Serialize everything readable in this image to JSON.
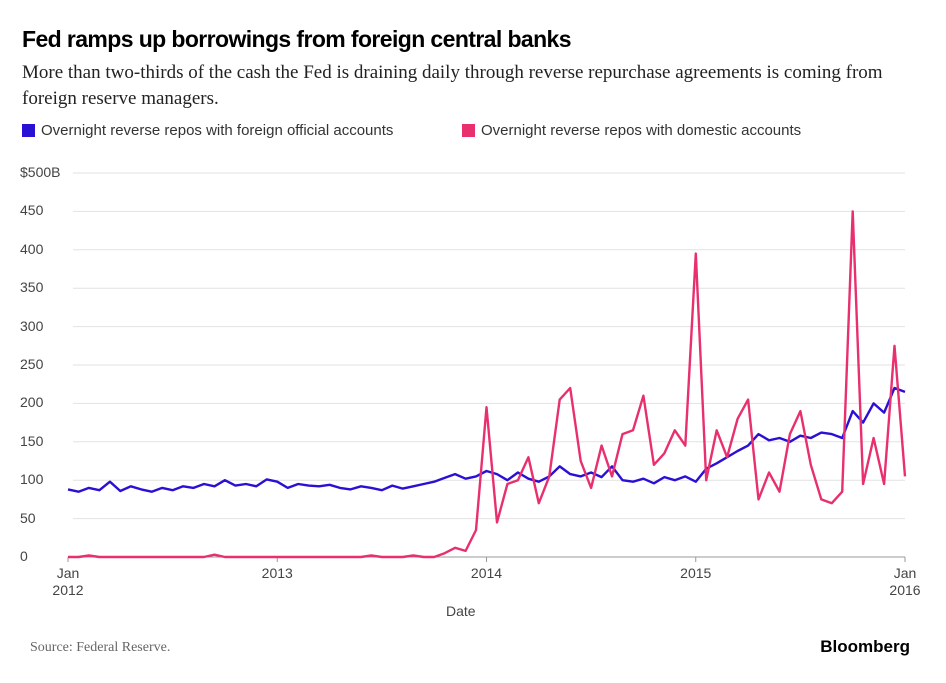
{
  "chart_data": {
    "type": "line",
    "title": "Fed ramps up borrowings from foreign central banks",
    "subtitle": "More than two-thirds of the cash the Fed is draining daily through reverse repurchase agreements is coming from foreign reserve managers.",
    "x_label": "Date",
    "source": "Source: Federal Reserve.",
    "brand": "Bloomberg",
    "x": [
      2012.0,
      2012.05,
      2012.1,
      2012.15,
      2012.2,
      2012.25,
      2012.3,
      2012.35,
      2012.4,
      2012.45,
      2012.5,
      2012.55,
      2012.6,
      2012.65,
      2012.7,
      2012.75,
      2012.8,
      2012.85,
      2012.9,
      2012.95,
      2013.0,
      2013.05,
      2013.1,
      2013.15,
      2013.2,
      2013.25,
      2013.3,
      2013.35,
      2013.4,
      2013.45,
      2013.5,
      2013.55,
      2013.6,
      2013.65,
      2013.7,
      2013.75,
      2013.8,
      2013.85,
      2013.9,
      2013.95,
      2014.0,
      2014.05,
      2014.1,
      2014.15,
      2014.2,
      2014.25,
      2014.3,
      2014.35,
      2014.4,
      2014.45,
      2014.5,
      2014.55,
      2014.6,
      2014.65,
      2014.7,
      2014.75,
      2014.8,
      2014.85,
      2014.9,
      2014.95,
      2015.0,
      2015.05,
      2015.1,
      2015.15,
      2015.2,
      2015.25,
      2015.3,
      2015.35,
      2015.4,
      2015.45,
      2015.5,
      2015.55,
      2015.6,
      2015.65,
      2015.7,
      2015.75,
      2015.8,
      2015.85,
      2015.9,
      2015.95,
      2016.0
    ],
    "series": [
      {
        "name": "Overnight reverse repos with foreign official accounts",
        "color": "#2a0fd4",
        "values": [
          88,
          85,
          90,
          87,
          98,
          86,
          92,
          88,
          85,
          90,
          87,
          92,
          90,
          95,
          92,
          100,
          93,
          95,
          92,
          101,
          98,
          90,
          95,
          93,
          92,
          94,
          90,
          88,
          92,
          90,
          87,
          93,
          89,
          92,
          95,
          98,
          103,
          108,
          102,
          105,
          112,
          108,
          100,
          110,
          102,
          98,
          105,
          118,
          108,
          105,
          110,
          104,
          118,
          100,
          98,
          102,
          96,
          104,
          100,
          105,
          98,
          115,
          122,
          130,
          138,
          145,
          160,
          152,
          155,
          150,
          158,
          155,
          162,
          160,
          155,
          190,
          175,
          200,
          188,
          220,
          215
        ]
      },
      {
        "name": "Overnight reverse repos with domestic accounts",
        "color": "#e8306f",
        "values": [
          0,
          0,
          2,
          0,
          0,
          0,
          0,
          0,
          0,
          0,
          0,
          0,
          0,
          0,
          3,
          0,
          0,
          0,
          0,
          0,
          0,
          0,
          0,
          0,
          0,
          0,
          0,
          0,
          0,
          2,
          0,
          0,
          0,
          2,
          0,
          0,
          5,
          12,
          8,
          35,
          195,
          45,
          95,
          100,
          130,
          70,
          105,
          205,
          220,
          125,
          90,
          145,
          105,
          160,
          165,
          210,
          120,
          135,
          165,
          145,
          395,
          100,
          165,
          130,
          180,
          205,
          75,
          110,
          85,
          160,
          190,
          120,
          75,
          70,
          85,
          450,
          95,
          155,
          95,
          275,
          105
        ]
      }
    ],
    "xlim": [
      2012,
      2016
    ],
    "xticks": [
      {
        "value": 2012,
        "label": "Jan\n2012"
      },
      2013,
      2014,
      2015,
      {
        "value": 2016,
        "label": "Jan\n2016"
      }
    ],
    "ylim": [
      0,
      500
    ],
    "yticks": [
      0,
      50,
      100,
      150,
      200,
      250,
      300,
      350,
      400,
      450,
      {
        "value": 500,
        "label": "$500B"
      }
    ],
    "grid": true
  }
}
